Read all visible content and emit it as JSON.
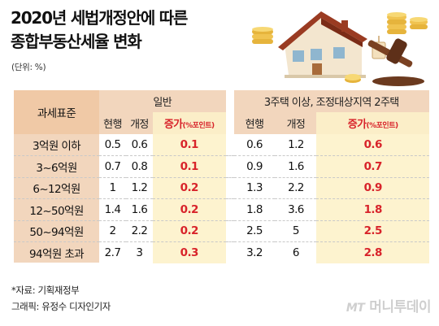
{
  "title_lines": [
    "2020년 세법개정안에 따른",
    "종합부동산세율 변화"
  ],
  "unit": "(단위: %)",
  "table": {
    "std_header": "과세표준",
    "group_general": "일반",
    "group_multi": "3주택 이상, 조정대상지역 2주택",
    "col_current": "현행",
    "col_revised": "개정",
    "col_increase_main": "증가",
    "col_increase_unit": "(%포인트)",
    "rows": [
      {
        "std": "3억원 이하",
        "g_cur": "0.5",
        "g_rev": "0.6",
        "g_inc": "0.1",
        "m_cur": "0.6",
        "m_rev": "1.2",
        "m_inc": "0.6"
      },
      {
        "std": "3~6억원",
        "g_cur": "0.7",
        "g_rev": "0.8",
        "g_inc": "0.1",
        "m_cur": "0.9",
        "m_rev": "1.6",
        "m_inc": "0.7"
      },
      {
        "std": "6~12억원",
        "g_cur": "1",
        "g_rev": "1.2",
        "g_inc": "0.2",
        "m_cur": "1.3",
        "m_rev": "2.2",
        "m_inc": "0.9"
      },
      {
        "std": "12~50억원",
        "g_cur": "1.4",
        "g_rev": "1.6",
        "g_inc": "0.2",
        "m_cur": "1.8",
        "m_rev": "3.6",
        "m_inc": "1.8"
      },
      {
        "std": "50~94억원",
        "g_cur": "2",
        "g_rev": "2.2",
        "g_inc": "0.2",
        "m_cur": "2.5",
        "m_rev": "5",
        "m_inc": "2.5"
      },
      {
        "std": "94억원 초과",
        "g_cur": "2.7",
        "g_rev": "3",
        "g_inc": "0.3",
        "m_cur": "3.2",
        "m_rev": "6",
        "m_inc": "2.8"
      }
    ]
  },
  "source": "*자료: 기획재정부",
  "credit": "그래픽: 유정수 디자인기자",
  "logo_prefix": "MT",
  "logo": "머니투데이",
  "colors": {
    "accent_red": "#d8232a",
    "header_fill": "#f0c9a6",
    "increase_fill": "#fdf3cf"
  }
}
